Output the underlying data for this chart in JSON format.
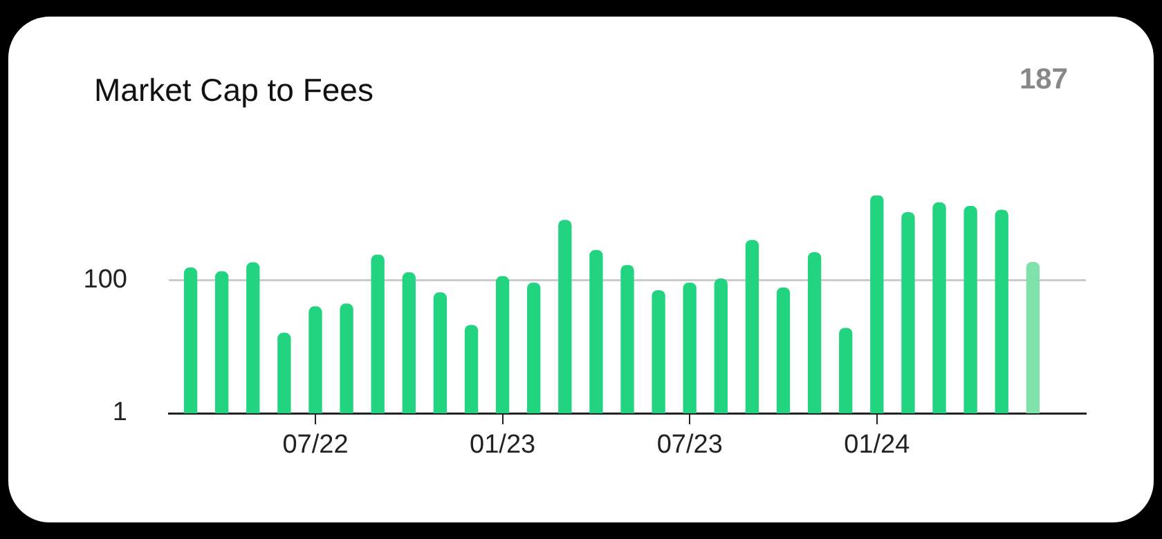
{
  "chart_data": {
    "type": "bar",
    "title": "Market Cap to Fees",
    "annotations": [
      "187"
    ],
    "x": [
      "2022-03",
      "2022-04",
      "2022-05",
      "2022-06",
      "2022-07",
      "2022-08",
      "2022-09",
      "2022-10",
      "2022-11",
      "2022-12",
      "2023-01",
      "2023-02",
      "2023-03",
      "2023-04",
      "2023-05",
      "2023-06",
      "2023-07",
      "2023-08",
      "2023-09",
      "2023-10",
      "2023-11",
      "2023-12",
      "2024-01",
      "2024-02",
      "2024-03",
      "2024-04",
      "2024-05",
      "2024-06"
    ],
    "values": [
      154,
      135,
      184,
      16,
      40,
      44,
      240,
      130,
      65,
      21,
      114,
      91,
      800,
      283,
      168,
      70,
      91,
      105,
      400,
      77,
      261,
      19,
      1900,
      1050,
      1470,
      1300,
      1140,
      187
    ],
    "colors": [
      "#22d47f",
      "#22d47f",
      "#22d47f",
      "#22d47f",
      "#22d47f",
      "#22d47f",
      "#22d47f",
      "#22d47f",
      "#22d47f",
      "#22d47f",
      "#22d47f",
      "#22d47f",
      "#22d47f",
      "#22d47f",
      "#22d47f",
      "#22d47f",
      "#22d47f",
      "#22d47f",
      "#22d47f",
      "#22d47f",
      "#22d47f",
      "#22d47f",
      "#22d47f",
      "#22d47f",
      "#22d47f",
      "#22d47f",
      "#22d47f",
      "#7fe2aa"
    ],
    "log": true,
    "ylim": [
      1,
      1900
    ],
    "yticks": [
      1,
      100
    ],
    "xlim": [
      "2022-02-10",
      "2024-07-22"
    ],
    "xticks": [
      {
        "value": "2022-07",
        "label": "07/22"
      },
      {
        "value": "2023-01",
        "label": "01/23"
      },
      {
        "value": "2023-07",
        "label": "07/23"
      },
      {
        "value": "2024-01",
        "label": "01/24"
      }
    ],
    "grid": "y",
    "legend": false
  }
}
